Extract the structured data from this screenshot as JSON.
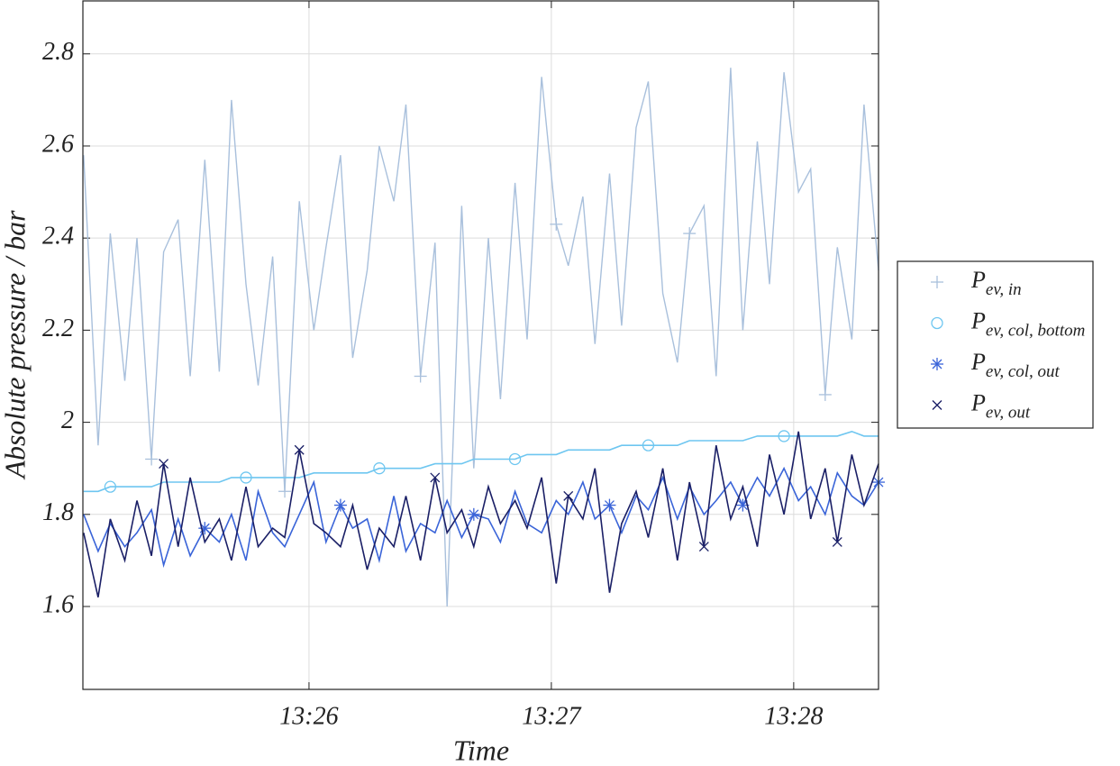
{
  "chart_data": {
    "type": "line",
    "xlabel": "Time",
    "ylabel": "Absolute pressure / bar",
    "x": [
      25.07,
      25.13,
      25.18,
      25.24,
      25.29,
      25.35,
      25.4,
      25.46,
      25.51,
      25.57,
      25.63,
      25.68,
      25.74,
      25.79,
      25.85,
      25.9,
      25.96,
      26.02,
      26.07,
      26.13,
      26.18,
      26.24,
      26.29,
      26.35,
      26.4,
      26.46,
      26.52,
      26.57,
      26.63,
      26.68,
      26.74,
      26.79,
      26.85,
      26.9,
      26.96,
      27.02,
      27.07,
      27.13,
      27.18,
      27.24,
      27.29,
      27.35,
      27.4,
      27.46,
      27.52,
      27.57,
      27.63,
      27.68,
      27.74,
      27.79,
      27.85,
      27.9,
      27.96,
      28.02,
      28.07,
      28.13,
      28.18,
      28.24,
      28.29,
      28.35
    ],
    "series": [
      {
        "name": "P",
        "name_sub": "ev, in",
        "color": "#a9c0dc",
        "marker": "plus",
        "values": [
          2.58,
          1.95,
          2.41,
          2.09,
          2.4,
          1.92,
          2.37,
          2.44,
          2.1,
          2.57,
          2.11,
          2.7,
          2.3,
          2.08,
          2.36,
          1.85,
          2.48,
          2.2,
          2.38,
          2.58,
          2.14,
          2.33,
          2.6,
          2.48,
          2.69,
          2.1,
          2.39,
          1.6,
          2.47,
          1.9,
          2.4,
          2.05,
          2.52,
          2.18,
          2.75,
          2.43,
          2.34,
          2.49,
          2.17,
          2.54,
          2.21,
          2.64,
          2.74,
          2.28,
          2.13,
          2.41,
          2.47,
          2.1,
          2.77,
          2.2,
          2.61,
          2.3,
          2.76,
          2.5,
          2.55,
          2.06,
          2.38,
          2.18,
          2.69,
          2.33
        ]
      },
      {
        "name": "P",
        "name_sub": "ev, col, bottom",
        "color": "#6ec6f0",
        "marker": "circle",
        "values": [
          1.85,
          1.85,
          1.86,
          1.86,
          1.86,
          1.86,
          1.87,
          1.87,
          1.87,
          1.87,
          1.87,
          1.88,
          1.88,
          1.88,
          1.88,
          1.88,
          1.88,
          1.89,
          1.89,
          1.89,
          1.89,
          1.89,
          1.9,
          1.9,
          1.9,
          1.9,
          1.91,
          1.91,
          1.91,
          1.92,
          1.92,
          1.92,
          1.92,
          1.93,
          1.93,
          1.93,
          1.94,
          1.94,
          1.94,
          1.94,
          1.95,
          1.95,
          1.95,
          1.95,
          1.95,
          1.96,
          1.96,
          1.96,
          1.96,
          1.96,
          1.97,
          1.97,
          1.97,
          1.97,
          1.97,
          1.97,
          1.97,
          1.98,
          1.97,
          1.97
        ]
      },
      {
        "name": "P",
        "name_sub": "ev, col, out",
        "color": "#3a64d8",
        "marker": "star",
        "values": [
          1.8,
          1.72,
          1.78,
          1.73,
          1.76,
          1.81,
          1.69,
          1.79,
          1.71,
          1.77,
          1.74,
          1.8,
          1.7,
          1.85,
          1.76,
          1.73,
          1.8,
          1.87,
          1.74,
          1.82,
          1.77,
          1.79,
          1.7,
          1.84,
          1.72,
          1.78,
          1.76,
          1.83,
          1.75,
          1.8,
          1.79,
          1.74,
          1.85,
          1.78,
          1.76,
          1.83,
          1.8,
          1.87,
          1.79,
          1.82,
          1.76,
          1.84,
          1.81,
          1.88,
          1.79,
          1.86,
          1.8,
          1.83,
          1.87,
          1.82,
          1.88,
          1.84,
          1.9,
          1.83,
          1.86,
          1.8,
          1.89,
          1.84,
          1.82,
          1.87
        ]
      },
      {
        "name": "P",
        "name_sub": "ev, out",
        "color": "#1a1f66",
        "marker": "cross",
        "values": [
          1.76,
          1.62,
          1.79,
          1.7,
          1.83,
          1.71,
          1.91,
          1.73,
          1.88,
          1.74,
          1.79,
          1.7,
          1.86,
          1.73,
          1.77,
          1.75,
          1.94,
          1.78,
          1.76,
          1.73,
          1.82,
          1.68,
          1.77,
          1.73,
          1.84,
          1.7,
          1.88,
          1.76,
          1.81,
          1.73,
          1.86,
          1.78,
          1.83,
          1.77,
          1.88,
          1.65,
          1.84,
          1.79,
          1.9,
          1.63,
          1.78,
          1.85,
          1.75,
          1.9,
          1.7,
          1.87,
          1.73,
          1.95,
          1.79,
          1.86,
          1.73,
          1.93,
          1.8,
          1.98,
          1.79,
          1.9,
          1.74,
          1.93,
          1.82,
          1.91
        ]
      }
    ],
    "xlim": [
      25.067,
      28.35
    ],
    "xticks": [
      {
        "value": 26,
        "label": "13:26"
      },
      {
        "value": 27,
        "label": "13:27"
      },
      {
        "value": 28,
        "label": "13:28"
      }
    ],
    "ylim": [
      1.42,
      2.915
    ],
    "yticks": [
      1.6,
      1.8,
      2,
      2.2,
      2.4,
      2.6,
      2.8
    ],
    "grid": true,
    "legend": "outside right"
  }
}
